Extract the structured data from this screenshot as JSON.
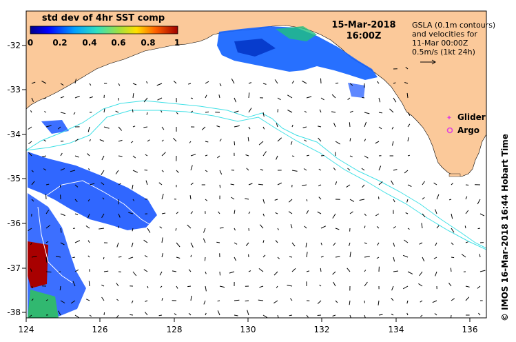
{
  "header": {
    "date": "15-Mar-2018",
    "time": "16:00Z"
  },
  "colorbar": {
    "title": "std dev of 4hr SST comp",
    "ticks": [
      "0",
      "0.2",
      "0.4",
      "0.6",
      "0.8",
      "1"
    ]
  },
  "info": {
    "line1": "GSLA (0.1m contours)",
    "line2": "and velocities for",
    "line3": "11-Mar 00:00Z",
    "line4": "0.5m/s (1kt 24h)"
  },
  "legend": {
    "glider": "Glider",
    "argo": "Argo"
  },
  "credit": "© IMOS 16-Mar-2018 16:44 Hobart Time",
  "axes": {
    "x_ticks": [
      "124",
      "126",
      "128",
      "130",
      "132",
      "134",
      "136"
    ],
    "y_ticks": [
      "-32",
      "-33",
      "-34",
      "-35",
      "-36",
      "-37",
      "-38"
    ]
  },
  "colors": {
    "land": "#fbc99a",
    "contour": "#3fe0e6",
    "glider": "#e040e0",
    "argo": "#e040e0"
  }
}
